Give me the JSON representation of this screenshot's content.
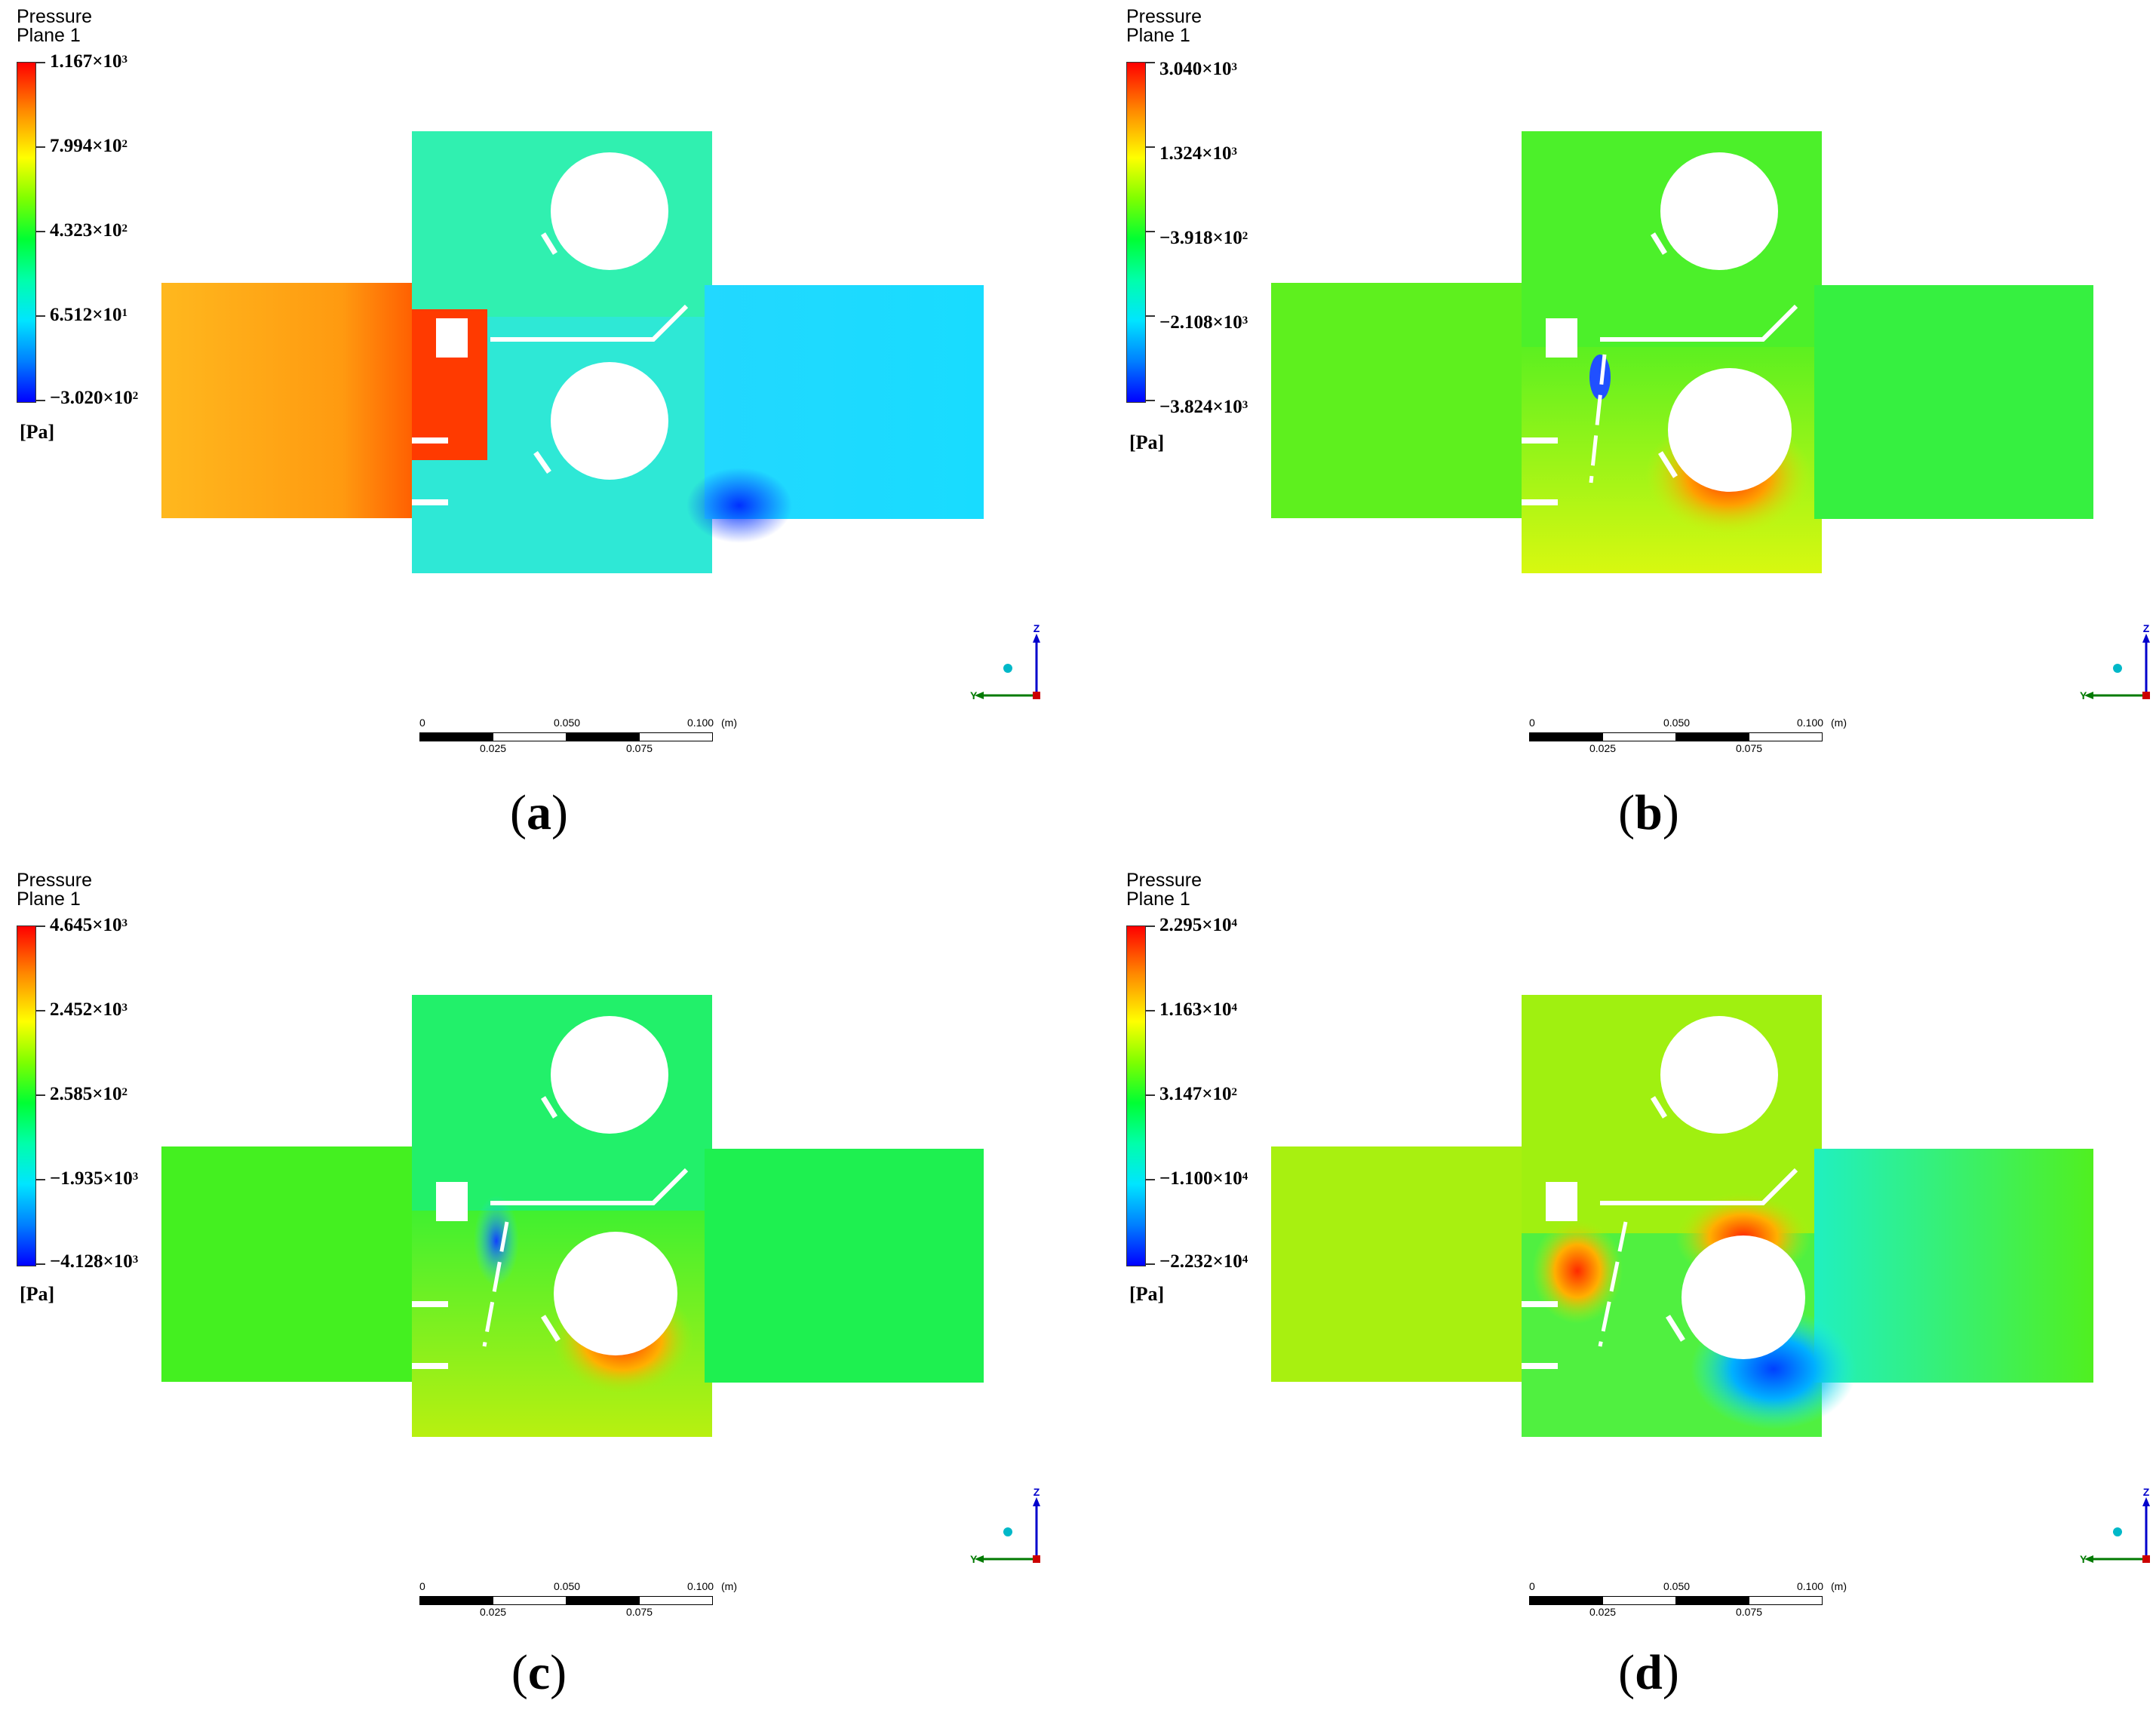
{
  "panels": [
    {
      "title": "Pressure",
      "subtitle": "Plane 1",
      "levels": [
        {
          "mant": "1.167×10",
          "exp": "3"
        },
        {
          "mant": "7.994×10",
          "exp": "2"
        },
        {
          "mant": "4.323×10",
          "exp": "2"
        },
        {
          "mant": "6.512×10",
          "exp": "1"
        },
        {
          "mant": "−3.020×10",
          "exp": "2"
        }
      ],
      "unit": "[Pa]",
      "caption_letter": "a",
      "field_colors": {
        "left": "#ffb020",
        "top": "#33f5a8",
        "bottom": "#2ef0c8",
        "right": "#1ee0ff",
        "hot": "#ff3a00",
        "cold": "#0030ff"
      }
    },
    {
      "title": "Pressure",
      "subtitle": "Plane 1",
      "levels": [
        {
          "mant": "3.040×10",
          "exp": "3"
        },
        {
          "mant": "1.324×10",
          "exp": "3"
        },
        {
          "mant": "−3.918×10",
          "exp": "2"
        },
        {
          "mant": "−2.108×10",
          "exp": "3"
        },
        {
          "mant": "−3.824×10",
          "exp": "3"
        }
      ],
      "unit": "[Pa]",
      "caption_letter": "b",
      "field_colors": {
        "left": "#5ef01e",
        "top": "#4cf02a",
        "bottom": "#9cf010",
        "right": "#36f040",
        "hot": "#ff2a00",
        "cold": "#2040ff"
      }
    },
    {
      "title": "Pressure",
      "subtitle": "Plane 1",
      "levels": [
        {
          "mant": "4.645×10",
          "exp": "3"
        },
        {
          "mant": "2.452×10",
          "exp": "3"
        },
        {
          "mant": "2.585×10",
          "exp": "2"
        },
        {
          "mant": "−1.935×10",
          "exp": "3"
        },
        {
          "mant": "−4.128×10",
          "exp": "3"
        }
      ],
      "unit": "[Pa]",
      "caption_letter": "c",
      "field_colors": {
        "left": "#44f020",
        "top": "#22f06a",
        "bottom": "#7cf010",
        "right": "#1ef050",
        "hot": "#ff3000",
        "cold": "#1060ff"
      }
    },
    {
      "title": "Pressure",
      "subtitle": "Plane 1",
      "levels": [
        {
          "mant": "2.295×10",
          "exp": "4"
        },
        {
          "mant": "1.163×10",
          "exp": "4"
        },
        {
          "mant": "3.147×10",
          "exp": "2"
        },
        {
          "mant": "−1.100×10",
          "exp": "4"
        },
        {
          "mant": "−2.232×10",
          "exp": "4"
        }
      ],
      "unit": "[Pa]",
      "caption_letter": "d",
      "field_colors": {
        "left": "#a8f010",
        "top": "#a0f010",
        "bottom": "#3cf060",
        "right": "#4cf028",
        "hot": "#ff2a00",
        "cold": "#0050ff"
      }
    }
  ],
  "scale_bar": {
    "top_labels": [
      "0",
      "0.050",
      "0.100"
    ],
    "bottom_labels": [
      "0.025",
      "0.075"
    ],
    "unit": "(m)"
  },
  "axes": {
    "z_label": "Z",
    "y_label": "Y"
  }
}
